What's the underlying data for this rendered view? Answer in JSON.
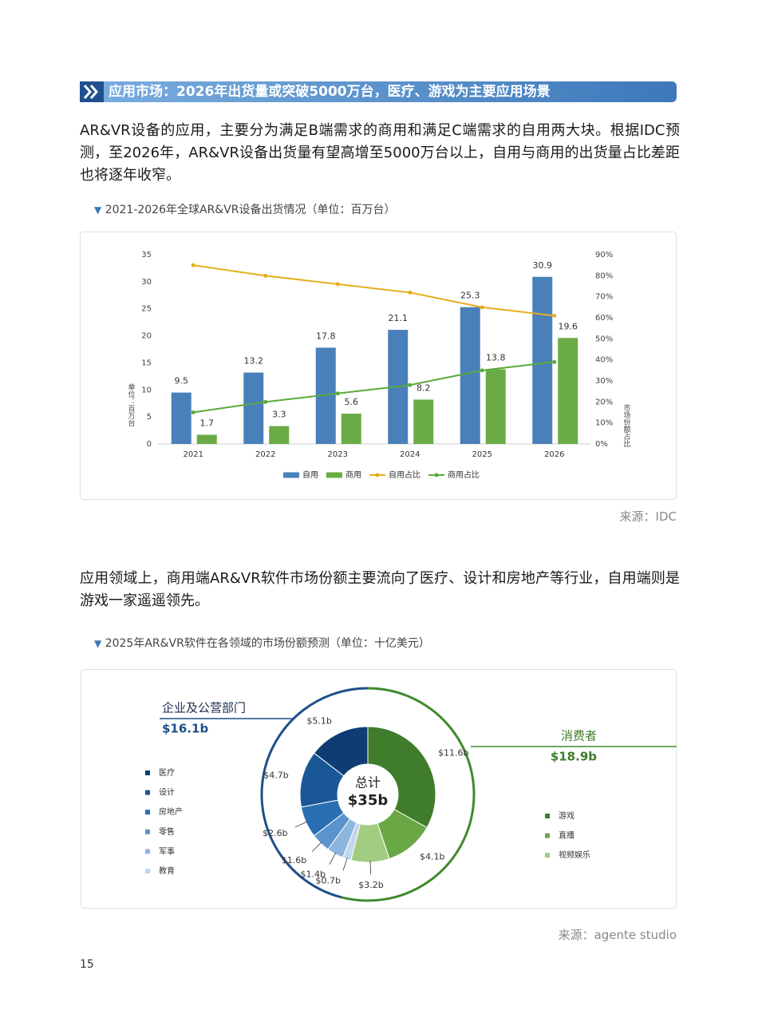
{
  "header": {
    "title": "应用市场：2026年出货量或突破5000万台，医疗、游戏为主要应用场景"
  },
  "paragraphs": [
    "AR&VR设备的应用，主要分为满足B端需求的商用和满足C端需求的自用两大块。根据IDC预测，至2026年，AR&VR设备出货量有望高增至5000万台以上，自用与商用的出货量占比差距也将逐年收窄。",
    "应用领域上，商用端AR&VR软件市场份额主要流向了医疗、设计和房地产等行业，自用端则是游戏一家遥遥领先。"
  ],
  "page_number": 15,
  "chart_data": [
    {
      "type": "bar",
      "title": "2021-2026年全球AR&VR设备出货情况（单位：百万台）",
      "y_label": "单位：百万台",
      "y2_label": "市场份额占比",
      "source": "来源：IDC",
      "categories": [
        "2021",
        "2022",
        "2023",
        "2024",
        "2025",
        "2026"
      ],
      "series": [
        {
          "name": "自用",
          "type": "bar",
          "color": "#4a80ba",
          "values": [
            9.5,
            13.2,
            17.8,
            21.1,
            25.3,
            30.9
          ]
        },
        {
          "name": "商用",
          "type": "bar",
          "color": "#6aab45",
          "values": [
            1.7,
            3.3,
            5.6,
            8.2,
            13.8,
            19.6
          ]
        },
        {
          "name": "自用占比",
          "type": "line",
          "axis": "y2",
          "color": "#e6ae1e",
          "values": [
            85,
            80,
            76,
            72,
            65,
            61
          ]
        },
        {
          "name": "商用占比",
          "type": "line",
          "axis": "y2",
          "color": "#5aaa3a",
          "values": [
            15,
            20,
            24,
            28,
            35,
            39
          ]
        }
      ],
      "ylim": [
        0,
        35
      ],
      "yticks": [
        0,
        5,
        10,
        15,
        20,
        25,
        30,
        35
      ],
      "y2lim": [
        0,
        90
      ],
      "y2ticks": [
        {
          "value": 0,
          "label": "0%"
        },
        {
          "value": 10,
          "label": "10%"
        },
        {
          "value": 20,
          "label": "20%"
        },
        {
          "value": 30,
          "label": "30%"
        },
        {
          "value": 40,
          "label": "40%"
        },
        {
          "value": 50,
          "label": "50%"
        },
        {
          "value": 60,
          "label": "60%"
        },
        {
          "value": 70,
          "label": "70%"
        },
        {
          "value": 80,
          "label": "80%"
        },
        {
          "value": 90,
          "label": "90%"
        }
      ],
      "legend": "bottom"
    },
    {
      "type": "donut",
      "title": "2025年AR&VR软件在各领域的市场份额预测（单位：十亿美元）",
      "source": "来源：agente studio",
      "center": {
        "text": "总计",
        "value": 35,
        "value_label": "$35b"
      },
      "groups": [
        {
          "name": "企业及公营部门",
          "value": 16.1,
          "value_label": "$16.1b",
          "color": "#1e4f8a",
          "categories": [
            "医疗",
            "设计",
            "房地产",
            "零售",
            "军事",
            "教育"
          ],
          "values": [
            5.1,
            4.7,
            2.6,
            1.6,
            1.4,
            0.7
          ],
          "value_labels": [
            "$5.1b",
            "$4.7b",
            "$2.6b",
            "$1.6b",
            "$1.4b",
            "$0.7b"
          ],
          "colors": [
            "#0f3d73",
            "#1a5797",
            "#2a6fb3",
            "#5b93cc",
            "#8db6de",
            "#c1d7ec"
          ]
        },
        {
          "name": "消费者",
          "value": 18.9,
          "value_label": "$18.9b",
          "color": "#3f8a2c",
          "categories": [
            "游戏",
            "直播",
            "视频娱乐"
          ],
          "values": [
            11.6,
            4.1,
            3.2
          ],
          "value_labels": [
            "$11.6b",
            "$4.1b",
            "$3.2b"
          ],
          "colors": [
            "#3f7d2c",
            "#6aa845",
            "#a3cc83"
          ]
        }
      ]
    }
  ]
}
